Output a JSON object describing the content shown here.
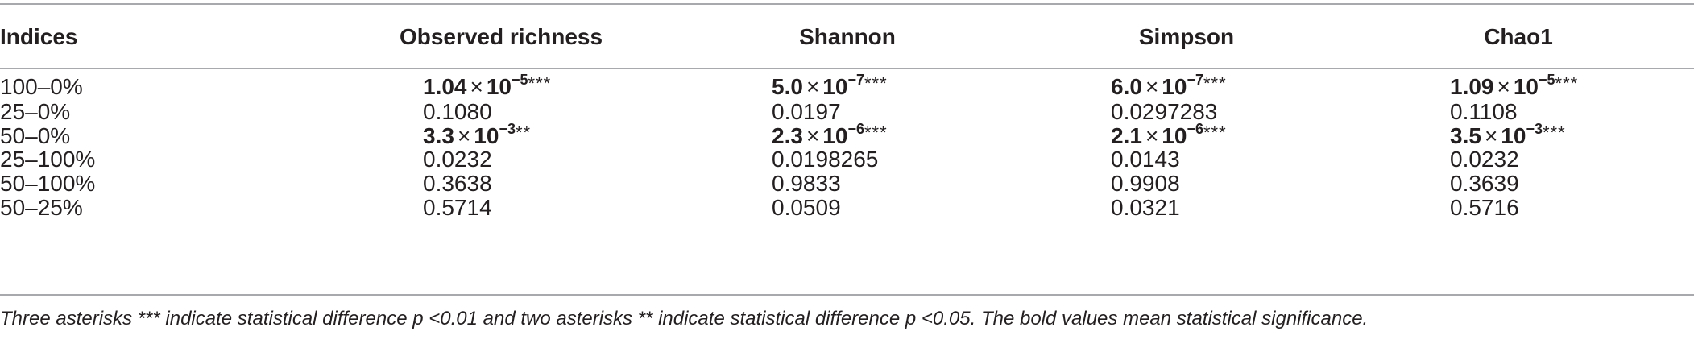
{
  "table": {
    "headers": [
      "Indices",
      "Observed richness",
      "Shannon",
      "Simpson",
      "Chao1"
    ],
    "rows": [
      {
        "label": "100–0%",
        "cells": [
          {
            "sci": true,
            "mantissa": "1.04",
            "times": "×",
            "base": "10",
            "exp": "−5",
            "stars": "***"
          },
          {
            "sci": true,
            "mantissa": "5.0",
            "times": "×",
            "base": "10",
            "exp": "−7",
            "stars": "***"
          },
          {
            "sci": true,
            "mantissa": "6.0",
            "times": "×",
            "base": "10",
            "exp": "−7",
            "stars": "***"
          },
          {
            "sci": true,
            "mantissa": "1.09",
            "times": "×",
            "base": "10",
            "exp": "−5",
            "stars": "***"
          }
        ]
      },
      {
        "label": "25–0%",
        "cells": [
          {
            "sci": false,
            "text": "0.1080"
          },
          {
            "sci": false,
            "text": "0.0197"
          },
          {
            "sci": false,
            "text": "0.0297283"
          },
          {
            "sci": false,
            "text": "0.1108"
          }
        ]
      },
      {
        "label": "50–0%",
        "cells": [
          {
            "sci": true,
            "mantissa": "3.3",
            "times": "×",
            "base": "10",
            "exp": "−3",
            "stars": "**"
          },
          {
            "sci": true,
            "mantissa": "2.3",
            "times": "×",
            "base": "10",
            "exp": "−6",
            "stars": "***"
          },
          {
            "sci": true,
            "mantissa": "2.1",
            "times": "×",
            "base": "10",
            "exp": "−6",
            "stars": "***"
          },
          {
            "sci": true,
            "mantissa": "3.5",
            "times": "×",
            "base": "10",
            "exp": "−3",
            "stars": "***"
          }
        ]
      },
      {
        "label": "25–100%",
        "cells": [
          {
            "sci": false,
            "text": "0.0232"
          },
          {
            "sci": false,
            "text": "0.0198265"
          },
          {
            "sci": false,
            "text": "0.0143"
          },
          {
            "sci": false,
            "text": "0.0232"
          }
        ]
      },
      {
        "label": "50–100%",
        "cells": [
          {
            "sci": false,
            "text": "0.3638"
          },
          {
            "sci": false,
            "text": "0.9833"
          },
          {
            "sci": false,
            "text": "0.9908"
          },
          {
            "sci": false,
            "text": "0.3639"
          }
        ]
      },
      {
        "label": "50–25%",
        "cells": [
          {
            "sci": false,
            "text": "0.5714"
          },
          {
            "sci": false,
            "text": "0.0509"
          },
          {
            "sci": false,
            "text": "0.0321"
          },
          {
            "sci": false,
            "text": "0.5716"
          }
        ]
      }
    ]
  },
  "footnote": "Three asterisks *** indicate statistical difference p <0.01 and two asterisks ** indicate statistical difference p <0.05. The bold values mean statistical significance."
}
